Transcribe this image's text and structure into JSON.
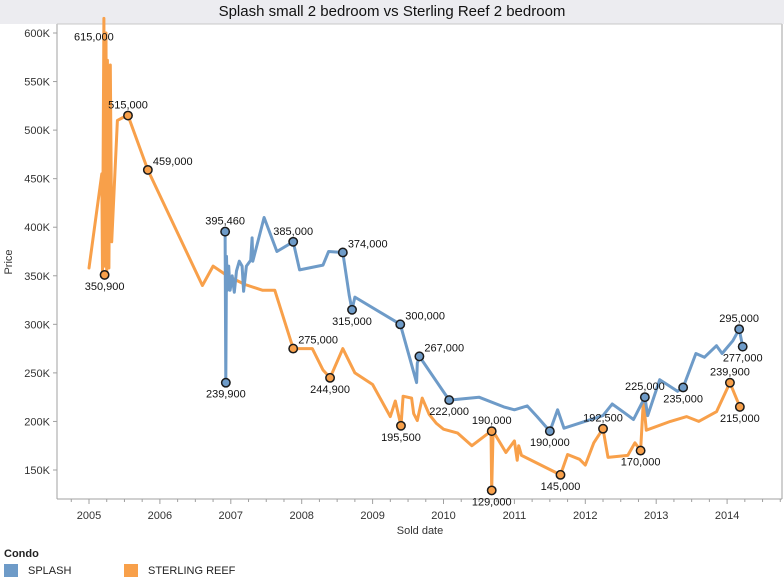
{
  "chart_data": {
    "type": "line",
    "title": "Splash small 2 bedroom vs Sterling Reef 2 bedroom",
    "xlabel": "Sold date",
    "ylabel": "Price",
    "xlim": [
      2004.55,
      2014.78
    ],
    "ylim": [
      120000,
      608000
    ],
    "x_ticks": [
      2005,
      2006,
      2007,
      2008,
      2009,
      2010,
      2011,
      2012,
      2013,
      2014
    ],
    "x_tick_labels": [
      "2005",
      "2006",
      "2007",
      "2008",
      "2009",
      "2010",
      "2011",
      "2012",
      "2013",
      "2014"
    ],
    "y_ticks": [
      150000,
      200000,
      250000,
      300000,
      350000,
      400000,
      450000,
      500000,
      550000,
      600000
    ],
    "y_tick_labels": [
      "150K",
      "200K",
      "250K",
      "300K",
      "350K",
      "400K",
      "450K",
      "500K",
      "550K",
      "600K"
    ],
    "grid": false,
    "legend": {
      "title": "Condo",
      "placement": "bottom-left",
      "entries": [
        {
          "name": "SPLASH",
          "color": "#6e9bc8"
        },
        {
          "name": "STERLING REEF",
          "color": "#f8a04a"
        }
      ]
    },
    "series": [
      {
        "name": "SPLASH",
        "color": "#6e9bc8",
        "points": [
          [
            2006.92,
            395460
          ],
          [
            2006.93,
            239900
          ],
          [
            2006.94,
            370000
          ],
          [
            2006.95,
            335000
          ],
          [
            2006.97,
            360000
          ],
          [
            2006.99,
            335000
          ],
          [
            2007.02,
            350000
          ],
          [
            2007.05,
            333000
          ],
          [
            2007.08,
            355000
          ],
          [
            2007.12,
            365000
          ],
          [
            2007.16,
            360000
          ],
          [
            2007.18,
            334000
          ],
          [
            2007.22,
            360000
          ],
          [
            2007.28,
            366000
          ],
          [
            2007.3,
            389000
          ],
          [
            2007.31,
            365000
          ],
          [
            2007.47,
            410000
          ],
          [
            2007.65,
            375000
          ],
          [
            2007.88,
            385000
          ],
          [
            2007.97,
            356000
          ],
          [
            2008.3,
            361000
          ],
          [
            2008.38,
            375000
          ],
          [
            2008.58,
            374000
          ],
          [
            2008.67,
            330000
          ],
          [
            2008.71,
            315000
          ],
          [
            2008.75,
            328000
          ],
          [
            2009.39,
            300000
          ],
          [
            2009.62,
            240000
          ],
          [
            2009.63,
            260000
          ],
          [
            2009.66,
            267000
          ],
          [
            2010.08,
            222000
          ],
          [
            2010.5,
            225000
          ],
          [
            2010.85,
            215000
          ],
          [
            2011.0,
            212000
          ],
          [
            2011.18,
            216000
          ],
          [
            2011.32,
            205000
          ],
          [
            2011.5,
            190000
          ],
          [
            2011.61,
            212000
          ],
          [
            2011.7,
            193000
          ],
          [
            2012.25,
            206000
          ],
          [
            2012.38,
            218000
          ],
          [
            2012.55,
            209000
          ],
          [
            2012.68,
            202000
          ],
          [
            2012.84,
            225000
          ],
          [
            2012.88,
            206000
          ],
          [
            2013.05,
            243000
          ],
          [
            2013.3,
            231000
          ],
          [
            2013.38,
            235000
          ],
          [
            2013.56,
            270000
          ],
          [
            2013.68,
            266000
          ],
          [
            2013.85,
            278000
          ],
          [
            2013.93,
            270000
          ],
          [
            2014.08,
            283000
          ],
          [
            2014.17,
            295000
          ],
          [
            2014.22,
            277000
          ]
        ],
        "labels": [
          {
            "x": 2006.92,
            "y": 395460,
            "text": "395,460",
            "pos": "above"
          },
          {
            "x": 2006.93,
            "y": 239900,
            "text": "239,900",
            "pos": "below"
          },
          {
            "x": 2007.88,
            "y": 385000,
            "text": "385,000",
            "pos": "above"
          },
          {
            "x": 2008.58,
            "y": 374000,
            "text": "374,000",
            "pos": "above-right"
          },
          {
            "x": 2008.71,
            "y": 315000,
            "text": "315,000",
            "pos": "below"
          },
          {
            "x": 2009.39,
            "y": 300000,
            "text": "300,000",
            "pos": "above-right"
          },
          {
            "x": 2009.66,
            "y": 267000,
            "text": "267,000",
            "pos": "above-right"
          },
          {
            "x": 2010.08,
            "y": 222000,
            "text": "222,000",
            "pos": "below"
          },
          {
            "x": 2011.5,
            "y": 190000,
            "text": "190,000",
            "pos": "below"
          },
          {
            "x": 2012.84,
            "y": 225000,
            "text": "225,000",
            "pos": "above"
          },
          {
            "x": 2013.38,
            "y": 235000,
            "text": "235,000",
            "pos": "below"
          },
          {
            "x": 2014.17,
            "y": 295000,
            "text": "295,000",
            "pos": "above"
          },
          {
            "x": 2014.22,
            "y": 277000,
            "text": "277,000",
            "pos": "below"
          }
        ]
      },
      {
        "name": "STERLING REEF",
        "color": "#f8a04a",
        "points": [
          [
            2005.0,
            358000
          ],
          [
            2005.18,
            455000
          ],
          [
            2005.19,
            350900
          ],
          [
            2005.21,
            615000
          ],
          [
            2005.22,
            360000
          ],
          [
            2005.24,
            600000
          ],
          [
            2005.25,
            351000
          ],
          [
            2005.26,
            572000
          ],
          [
            2005.28,
            358000
          ],
          [
            2005.3,
            567000
          ],
          [
            2005.32,
            385000
          ],
          [
            2005.4,
            510000
          ],
          [
            2005.48,
            513000
          ],
          [
            2005.55,
            515000
          ],
          [
            2005.83,
            459000
          ],
          [
            2006.6,
            340000
          ],
          [
            2006.75,
            360000
          ],
          [
            2006.95,
            350000
          ],
          [
            2007.2,
            341000
          ],
          [
            2007.45,
            335000
          ],
          [
            2007.62,
            335000
          ],
          [
            2007.88,
            275000
          ],
          [
            2008.15,
            275000
          ],
          [
            2008.3,
            253000
          ],
          [
            2008.4,
            244900
          ],
          [
            2008.58,
            275000
          ],
          [
            2008.75,
            250000
          ],
          [
            2009.0,
            238000
          ],
          [
            2009.25,
            205000
          ],
          [
            2009.32,
            221000
          ],
          [
            2009.4,
            195500
          ],
          [
            2009.43,
            226000
          ],
          [
            2009.55,
            224000
          ],
          [
            2009.58,
            208000
          ],
          [
            2009.63,
            201000
          ],
          [
            2009.7,
            224000
          ],
          [
            2009.8,
            207000
          ],
          [
            2009.9,
            198000
          ],
          [
            2010.0,
            192000
          ],
          [
            2010.2,
            188000
          ],
          [
            2010.4,
            175000
          ],
          [
            2010.67,
            190000
          ],
          [
            2010.68,
            129000
          ],
          [
            2010.7,
            190000
          ],
          [
            2010.88,
            168000
          ],
          [
            2011.0,
            180000
          ],
          [
            2011.04,
            160000
          ],
          [
            2011.06,
            175000
          ],
          [
            2011.1,
            165000
          ],
          [
            2011.65,
            145000
          ],
          [
            2011.75,
            166000
          ],
          [
            2011.92,
            161000
          ],
          [
            2012.0,
            155000
          ],
          [
            2012.12,
            178000
          ],
          [
            2012.25,
            192500
          ],
          [
            2012.32,
            163000
          ],
          [
            2012.6,
            165000
          ],
          [
            2012.7,
            178000
          ],
          [
            2012.78,
            170000
          ],
          [
            2012.82,
            222000
          ],
          [
            2012.86,
            191000
          ],
          [
            2013.2,
            200000
          ],
          [
            2013.43,
            205000
          ],
          [
            2013.6,
            200000
          ],
          [
            2013.85,
            210000
          ],
          [
            2014.04,
            239900
          ],
          [
            2014.18,
            215000
          ]
        ],
        "labels": [
          {
            "x": 2005.21,
            "y": 615000,
            "text": "615,000",
            "pos": "below-left",
            "marker": false
          },
          {
            "x": 2005.22,
            "y": 350900,
            "text": "350,900",
            "pos": "below"
          },
          {
            "x": 2005.55,
            "y": 515000,
            "text": "515,000",
            "pos": "above"
          },
          {
            "x": 2005.83,
            "y": 459000,
            "text": "459,000",
            "pos": "above-right"
          },
          {
            "x": 2007.88,
            "y": 275000,
            "text": "275,000",
            "pos": "above-right"
          },
          {
            "x": 2008.4,
            "y": 244900,
            "text": "244,900",
            "pos": "below"
          },
          {
            "x": 2009.4,
            "y": 195500,
            "text": "195,500",
            "pos": "below"
          },
          {
            "x": 2010.68,
            "y": 190000,
            "text": "190,000",
            "pos": "above"
          },
          {
            "x": 2010.68,
            "y": 129000,
            "text": "129,000",
            "pos": "below"
          },
          {
            "x": 2011.65,
            "y": 145000,
            "text": "145,000",
            "pos": "below"
          },
          {
            "x": 2012.25,
            "y": 192500,
            "text": "192,500",
            "pos": "above"
          },
          {
            "x": 2012.78,
            "y": 170000,
            "text": "170,000",
            "pos": "below"
          },
          {
            "x": 2014.04,
            "y": 239900,
            "text": "239,900",
            "pos": "above"
          },
          {
            "x": 2014.18,
            "y": 215000,
            "text": "215,000",
            "pos": "below"
          }
        ]
      }
    ]
  }
}
